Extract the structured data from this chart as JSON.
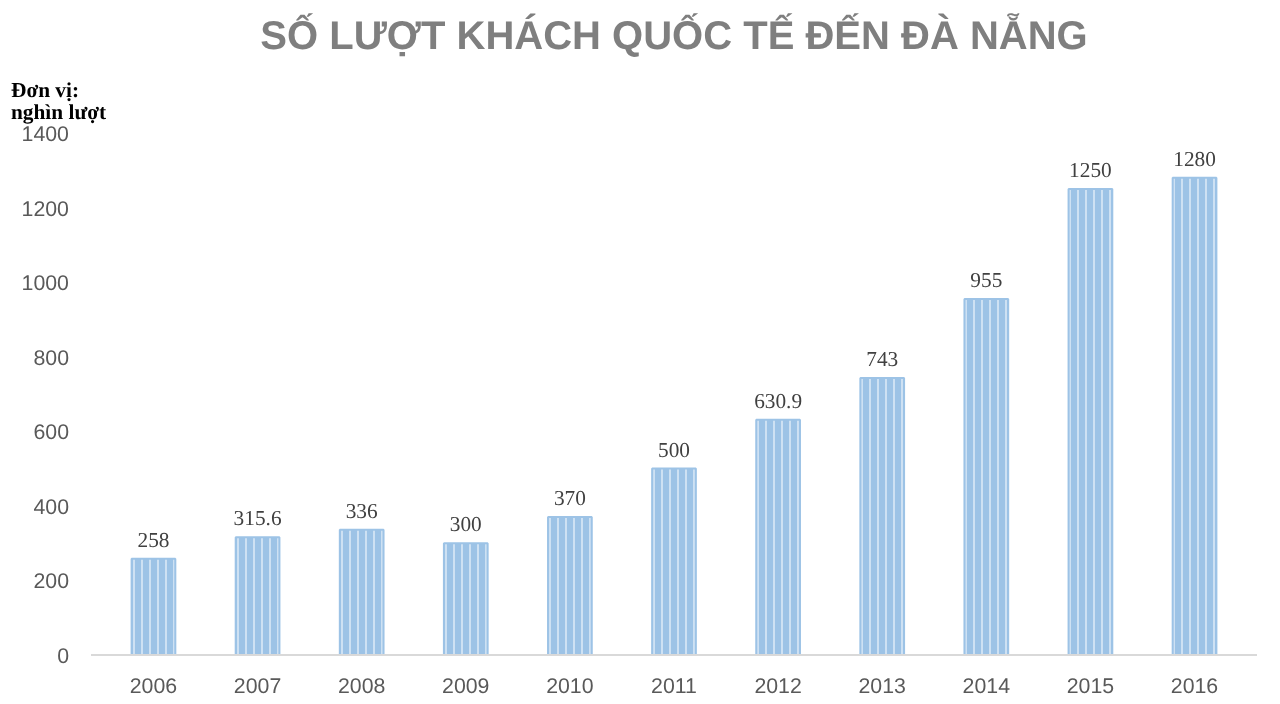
{
  "chart_data": {
    "type": "bar",
    "title": "SỐ LƯỢT KHÁCH QUỐC TẾ ĐẾN ĐÀ NẴNG",
    "ylabel": "Đơn vị:\nnghìn lượt",
    "categories": [
      "2006",
      "2007",
      "2008",
      "2009",
      "2010",
      "2011",
      "2012",
      "2013",
      "2014",
      "2015",
      "2016"
    ],
    "values": [
      258,
      315.6,
      336,
      300,
      370,
      500,
      630.9,
      743,
      955,
      1250,
      1280
    ],
    "color": "#9dc3e6",
    "ylim": [
      0,
      1400
    ],
    "yticks": [
      0,
      200,
      400,
      600,
      800,
      1000,
      1200,
      1400
    ],
    "grid": false,
    "data_labels": true
  }
}
